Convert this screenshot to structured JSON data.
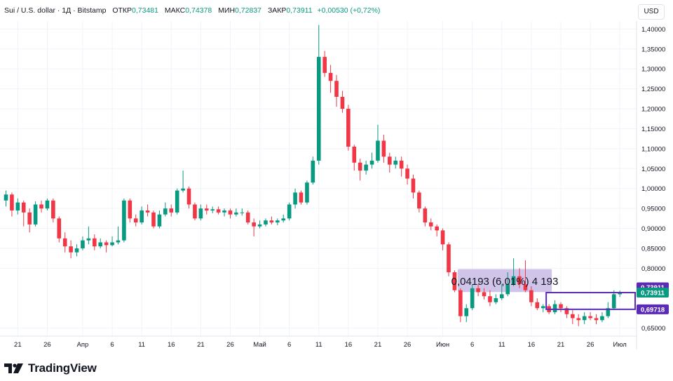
{
  "header": {
    "symbol": "Sui / U.S. dollar · 1Д · Bitstamp",
    "open_label": "ОТКР",
    "open_value": "0,73481",
    "high_label": "МАКС",
    "high_value": "0,74378",
    "low_label": "МИН",
    "low_value": "0,72837",
    "close_label": "ЗАКР",
    "close_value": "0,73911",
    "change": "+0,00530 (+0,72%)"
  },
  "currency_button": "USD",
  "brand": "TradingView",
  "colors": {
    "up": "#089981",
    "down": "#f23645",
    "measure_fill": "#d1c4e9",
    "range_box": "#5b2bb5"
  },
  "chart_data": {
    "type": "candlestick",
    "ylim": [
      0.63,
      1.42
    ],
    "y_ticks": [
      {
        "value": 1.4,
        "label": "1,40000"
      },
      {
        "value": 1.35,
        "label": "1,35000"
      },
      {
        "value": 1.3,
        "label": "1,30000"
      },
      {
        "value": 1.25,
        "label": "1,25000"
      },
      {
        "value": 1.2,
        "label": "1,20000"
      },
      {
        "value": 1.15,
        "label": "1,15000"
      },
      {
        "value": 1.1,
        "label": "1,10000"
      },
      {
        "value": 1.05,
        "label": "1,05000"
      },
      {
        "value": 1.0,
        "label": "1,00000"
      },
      {
        "value": 0.95,
        "label": "0,95000"
      },
      {
        "value": 0.9,
        "label": "0,90000"
      },
      {
        "value": 0.85,
        "label": "0,85000"
      },
      {
        "value": 0.8,
        "label": "0,80000"
      },
      {
        "value": 0.65,
        "label": "0,65000"
      }
    ],
    "x_ticks": [
      {
        "index": 2,
        "label": "21"
      },
      {
        "index": 7,
        "label": "26"
      },
      {
        "index": 13,
        "label": "Апр"
      },
      {
        "index": 18,
        "label": "6"
      },
      {
        "index": 23,
        "label": "11"
      },
      {
        "index": 28,
        "label": "16"
      },
      {
        "index": 33,
        "label": "21"
      },
      {
        "index": 38,
        "label": "26"
      },
      {
        "index": 43,
        "label": "Май"
      },
      {
        "index": 48,
        "label": "6"
      },
      {
        "index": 53,
        "label": "11"
      },
      {
        "index": 58,
        "label": "16"
      },
      {
        "index": 63,
        "label": "21"
      },
      {
        "index": 68,
        "label": "26"
      },
      {
        "index": 74,
        "label": "Июн"
      },
      {
        "index": 79,
        "label": "6"
      },
      {
        "index": 84,
        "label": "11"
      },
      {
        "index": 89,
        "label": "16"
      },
      {
        "index": 94,
        "label": "21"
      },
      {
        "index": 99,
        "label": "26"
      },
      {
        "index": 104,
        "label": "Июл"
      }
    ],
    "candles": [
      [
        0.97,
        0.985,
        0.995,
        0.955
      ],
      [
        0.985,
        0.945,
        0.99,
        0.93
      ],
      [
        0.945,
        0.965,
        0.975,
        0.935
      ],
      [
        0.965,
        0.94,
        0.97,
        0.905
      ],
      [
        0.94,
        0.91,
        0.95,
        0.89
      ],
      [
        0.91,
        0.96,
        0.968,
        0.905
      ],
      [
        0.96,
        0.95,
        0.97,
        0.94
      ],
      [
        0.95,
        0.97,
        0.975,
        0.945
      ],
      [
        0.97,
        0.925,
        0.975,
        0.915
      ],
      [
        0.925,
        0.875,
        0.93,
        0.865
      ],
      [
        0.875,
        0.855,
        0.89,
        0.84
      ],
      [
        0.855,
        0.84,
        0.87,
        0.825
      ],
      [
        0.84,
        0.85,
        0.86,
        0.83
      ],
      [
        0.85,
        0.87,
        0.88,
        0.845
      ],
      [
        0.87,
        0.875,
        0.905,
        0.86
      ],
      [
        0.875,
        0.855,
        0.885,
        0.845
      ],
      [
        0.855,
        0.865,
        0.875,
        0.85
      ],
      [
        0.865,
        0.858,
        0.87,
        0.84
      ],
      [
        0.858,
        0.865,
        0.88,
        0.855
      ],
      [
        0.865,
        0.87,
        0.905,
        0.86
      ],
      [
        0.87,
        0.97,
        0.975,
        0.865
      ],
      [
        0.97,
        0.925,
        0.975,
        0.915
      ],
      [
        0.925,
        0.915,
        0.935,
        0.905
      ],
      [
        0.915,
        0.945,
        0.955,
        0.91
      ],
      [
        0.945,
        0.94,
        0.96,
        0.93
      ],
      [
        0.94,
        0.905,
        0.945,
        0.9
      ],
      [
        0.905,
        0.935,
        0.945,
        0.9
      ],
      [
        0.935,
        0.95,
        0.965,
        0.93
      ],
      [
        0.95,
        0.94,
        0.96,
        0.93
      ],
      [
        0.94,
        0.995,
        1.0,
        0.935
      ],
      [
        0.995,
        1.0,
        1.045,
        0.99
      ],
      [
        1.0,
        0.96,
        1.005,
        0.95
      ],
      [
        0.96,
        0.925,
        0.965,
        0.92
      ],
      [
        0.925,
        0.95,
        0.96,
        0.92
      ],
      [
        0.95,
        0.945,
        0.96,
        0.935
      ],
      [
        0.945,
        0.948,
        0.955,
        0.938
      ],
      [
        0.948,
        0.94,
        0.955,
        0.935
      ],
      [
        0.94,
        0.945,
        0.95,
        0.93
      ],
      [
        0.945,
        0.935,
        0.95,
        0.925
      ],
      [
        0.935,
        0.94,
        0.95,
        0.93
      ],
      [
        0.94,
        0.94,
        0.95,
        0.932
      ],
      [
        0.94,
        0.915,
        0.945,
        0.91
      ],
      [
        0.915,
        0.905,
        0.925,
        0.88
      ],
      [
        0.905,
        0.91,
        0.92,
        0.9
      ],
      [
        0.91,
        0.92,
        0.925,
        0.905
      ],
      [
        0.92,
        0.915,
        0.93,
        0.91
      ],
      [
        0.915,
        0.92,
        0.925,
        0.908
      ],
      [
        0.92,
        0.925,
        0.935,
        0.915
      ],
      [
        0.925,
        0.96,
        0.965,
        0.92
      ],
      [
        0.96,
        0.99,
        1.0,
        0.95
      ],
      [
        0.99,
        0.965,
        0.995,
        0.96
      ],
      [
        0.965,
        1.015,
        1.02,
        0.96
      ],
      [
        1.015,
        1.07,
        1.08,
        1.01
      ],
      [
        1.07,
        1.33,
        1.41,
        1.06
      ],
      [
        1.33,
        1.29,
        1.345,
        1.28
      ],
      [
        1.29,
        1.27,
        1.31,
        1.24
      ],
      [
        1.27,
        1.23,
        1.285,
        1.205
      ],
      [
        1.23,
        1.2,
        1.245,
        1.19
      ],
      [
        1.2,
        1.105,
        1.21,
        1.095
      ],
      [
        1.105,
        1.065,
        1.11,
        1.045
      ],
      [
        1.065,
        1.045,
        1.075,
        1.02
      ],
      [
        1.045,
        1.06,
        1.07,
        1.035
      ],
      [
        1.06,
        1.07,
        1.09,
        1.05
      ],
      [
        1.07,
        1.12,
        1.16,
        1.065
      ],
      [
        1.12,
        1.08,
        1.135,
        1.065
      ],
      [
        1.08,
        1.06,
        1.09,
        1.04
      ],
      [
        1.06,
        1.07,
        1.08,
        1.05
      ],
      [
        1.07,
        1.05,
        1.08,
        1.03
      ],
      [
        1.05,
        1.025,
        1.06,
        1.01
      ],
      [
        1.025,
        0.99,
        1.035,
        0.975
      ],
      [
        0.99,
        0.95,
        0.995,
        0.94
      ],
      [
        0.95,
        0.915,
        0.955,
        0.905
      ],
      [
        0.915,
        0.905,
        0.925,
        0.895
      ],
      [
        0.905,
        0.895,
        0.91,
        0.88
      ],
      [
        0.895,
        0.86,
        0.9,
        0.845
      ],
      [
        0.86,
        0.79,
        0.865,
        0.78
      ],
      [
        0.79,
        0.745,
        0.795,
        0.74
      ],
      [
        0.745,
        0.68,
        0.75,
        0.665
      ],
      [
        0.68,
        0.7,
        0.71,
        0.665
      ],
      [
        0.7,
        0.75,
        0.76,
        0.695
      ],
      [
        0.75,
        0.74,
        0.76,
        0.73
      ],
      [
        0.74,
        0.73,
        0.75,
        0.722
      ],
      [
        0.73,
        0.715,
        0.745,
        0.705
      ],
      [
        0.715,
        0.725,
        0.735,
        0.71
      ],
      [
        0.725,
        0.735,
        0.76,
        0.72
      ],
      [
        0.735,
        0.76,
        0.79,
        0.73
      ],
      [
        0.76,
        0.78,
        0.825,
        0.755
      ],
      [
        0.78,
        0.76,
        0.8,
        0.75
      ],
      [
        0.76,
        0.745,
        0.82,
        0.74
      ],
      [
        0.745,
        0.715,
        0.755,
        0.705
      ],
      [
        0.715,
        0.7,
        0.725,
        0.695
      ],
      [
        0.7,
        0.705,
        0.71,
        0.69
      ],
      [
        0.705,
        0.69,
        0.71,
        0.685
      ],
      [
        0.69,
        0.71,
        0.72,
        0.685
      ],
      [
        0.71,
        0.7,
        0.715,
        0.69
      ],
      [
        0.7,
        0.685,
        0.705,
        0.675
      ],
      [
        0.685,
        0.675,
        0.695,
        0.66
      ],
      [
        0.675,
        0.67,
        0.685,
        0.655
      ],
      [
        0.67,
        0.68,
        0.69,
        0.66
      ],
      [
        0.68,
        0.675,
        0.69,
        0.67
      ],
      [
        0.675,
        0.67,
        0.685,
        0.66
      ],
      [
        0.67,
        0.68,
        0.69,
        0.665
      ],
      [
        0.68,
        0.7,
        0.715,
        0.675
      ],
      [
        0.7,
        0.735,
        0.745,
        0.695
      ],
      [
        0.735,
        0.739,
        0.744,
        0.728
      ]
    ],
    "measure": {
      "label": "0,04193 (6,01%) 4 193",
      "from_index": 77,
      "to_index": 92,
      "low": 0.7405,
      "high": 0.798
    },
    "range_box": {
      "from_index": 92,
      "to_index": 109,
      "low": 0.69718,
      "high": 0.73911
    },
    "price_labels": [
      {
        "value": 0.7522,
        "label": "0,73911",
        "style": "outline"
      },
      {
        "value": 0.73911,
        "label": "0,73911",
        "style": "green"
      },
      {
        "value": 0.69718,
        "label": "0,69718",
        "style": "outline"
      }
    ]
  }
}
